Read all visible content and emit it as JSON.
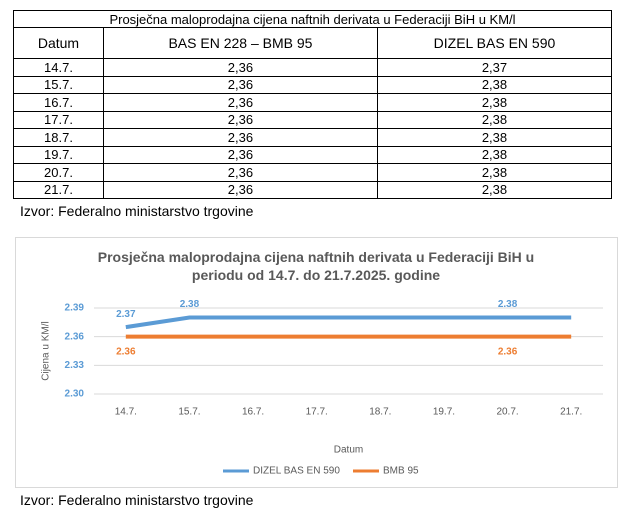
{
  "table": {
    "title": "Prosječna maloprodajna cijena naftnih derivata u Federaciji BiH u KM/l",
    "header": [
      "Datum",
      "BAS EN 228 – BMB 95",
      "DIZEL BAS EN 590"
    ],
    "rows": [
      [
        "14.7.",
        "2,36",
        "2,37"
      ],
      [
        "15.7.",
        "2,36",
        "2,38"
      ],
      [
        "16.7.",
        "2,36",
        "2,38"
      ],
      [
        "17.7.",
        "2,36",
        "2,38"
      ],
      [
        "18.7.",
        "2,36",
        "2,38"
      ],
      [
        "19.7.",
        "2,36",
        "2,38"
      ],
      [
        "20.7.",
        "2,36",
        "2,38"
      ],
      [
        "21.7.",
        "2,36",
        "2,38"
      ]
    ],
    "source": "Izvor: Federalno ministarstvo trgovine"
  },
  "chart_data": {
    "type": "line",
    "title": "Prosječna maloprodajna cijena naftnih derivata u Federaciji BiH u periodu od 14.7. do 21.7.2025. godine",
    "x_label": "Datum",
    "y_label": "Cijena u KM/l",
    "categories": [
      "14.7.",
      "15.7.",
      "16.7.",
      "17.7.",
      "18.7.",
      "19.7.",
      "20.7.",
      "21.7."
    ],
    "series": [
      {
        "name": "DIZEL BAS EN 590",
        "color": "#5b9bd5",
        "values": [
          2.37,
          2.38,
          2.38,
          2.38,
          2.38,
          2.38,
          2.38,
          2.38
        ],
        "value_labels": [
          "2.37",
          "2.38",
          null,
          null,
          null,
          null,
          "2.38",
          null
        ]
      },
      {
        "name": "BMB 95",
        "color": "#ed7d31",
        "values": [
          2.36,
          2.36,
          2.36,
          2.36,
          2.36,
          2.36,
          2.36,
          2.36
        ],
        "value_labels": [
          "2.36",
          null,
          null,
          null,
          null,
          null,
          "2.36",
          null
        ]
      }
    ],
    "ylim": [
      2.3,
      2.39
    ],
    "yticks": [
      {
        "value": 2.3,
        "label": "2.30"
      },
      2.33,
      2.36,
      2.39
    ],
    "grid": true,
    "legend": "bottom",
    "source": "Izvor: Federalno ministarstvo trgovine"
  }
}
